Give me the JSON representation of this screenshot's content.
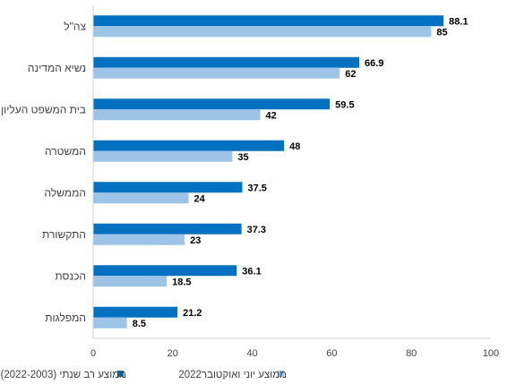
{
  "chart_data": {
    "type": "bar",
    "orientation": "horizontal",
    "categories": [
      "צה\"ל",
      "נשיא המדינה",
      "בית המשפט העליון",
      "המשטרה",
      "הממשלה",
      "התקשורת",
      "הכנסת",
      "המפלגות"
    ],
    "series": [
      {
        "name": "ממוצע רב שנתי (2022-2003)",
        "color": "#0070C0",
        "values": [
          88.1,
          66.9,
          59.5,
          48,
          37.5,
          37.3,
          36.1,
          21.2
        ]
      },
      {
        "name": "ממוצע יוני ואוקטובר2022",
        "color": "#9DC3E6",
        "values": [
          85,
          62,
          42,
          35,
          24,
          23,
          18.5,
          8.5
        ]
      }
    ],
    "xlim": [
      0,
      100
    ],
    "xticks": [
      0,
      20,
      40,
      60,
      80,
      100
    ],
    "grid": false,
    "legend_position": "bottom",
    "data_labels": true
  }
}
